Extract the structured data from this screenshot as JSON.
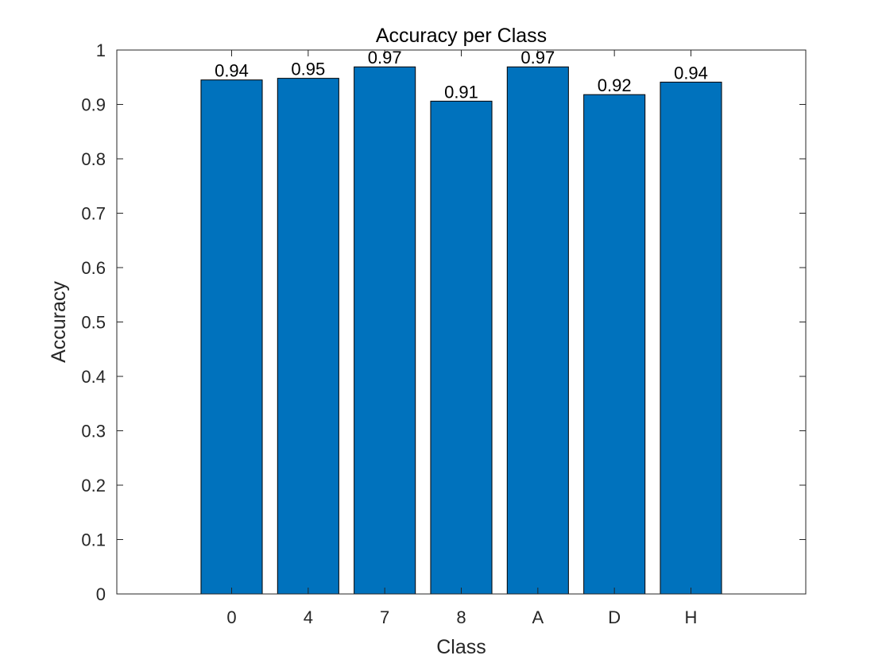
{
  "chart_data": {
    "type": "bar",
    "title": "Accuracy per Class",
    "xlabel": "Class",
    "ylabel": "Accuracy",
    "categories": [
      "0",
      "4",
      "7",
      "8",
      "A",
      "D",
      "H"
    ],
    "values": [
      0.945,
      0.948,
      0.969,
      0.906,
      0.969,
      0.918,
      0.941
    ],
    "data_labels": [
      "0.94",
      "0.95",
      "0.97",
      "0.91",
      "0.97",
      "0.92",
      "0.94"
    ],
    "ylim": [
      0,
      1
    ],
    "yticks": [
      0,
      0.1,
      0.2,
      0.3,
      0.4,
      0.5,
      0.6,
      0.7,
      0.8,
      0.9,
      1
    ],
    "ytick_labels": [
      "0",
      "0.1",
      "0.2",
      "0.3",
      "0.4",
      "0.5",
      "0.6",
      "0.7",
      "0.8",
      "0.9",
      "1"
    ],
    "grid": false,
    "legend": "none",
    "colors": {
      "bar": "#0072BD",
      "bar_edge": "#000000",
      "axis": "#262626",
      "background": "#ffffff"
    }
  }
}
